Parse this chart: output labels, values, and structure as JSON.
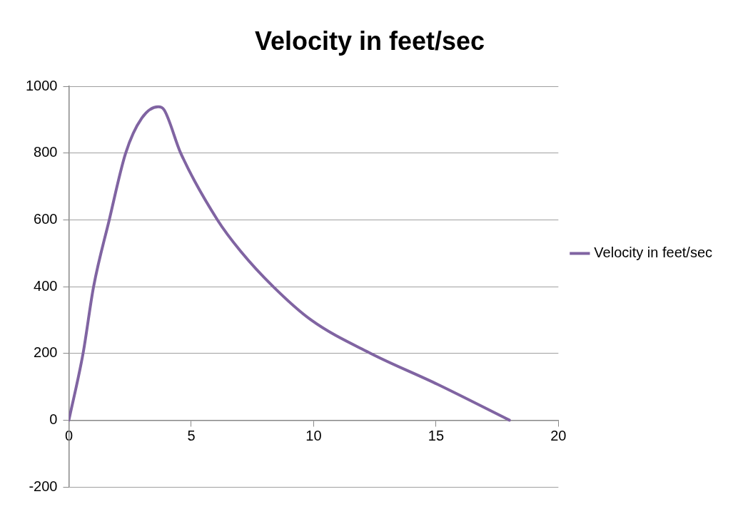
{
  "chart_data": {
    "type": "line",
    "title": "Velocity in feet/sec",
    "series": [
      {
        "name": "Velocity in feet/sec",
        "color": "#8064a2",
        "x": [
          0,
          0.58,
          1.01,
          1.65,
          2.32,
          2.98,
          3.65,
          3.89,
          4.57,
          6.07,
          7.02,
          8.35,
          9.9,
          12.33,
          15.07,
          18
        ],
        "values": [
          0,
          200,
          400,
          600,
          800,
          905,
          939,
          930,
          800,
          600,
          506,
          400,
          300,
          200,
          107,
          0
        ]
      }
    ],
    "xlim": [
      0,
      20
    ],
    "xticks": [
      0,
      5,
      10,
      15,
      20
    ],
    "ylim": [
      -200,
      1000
    ],
    "yticks": [
      -200,
      0,
      200,
      400,
      600,
      800,
      1000
    ],
    "grid": "y",
    "legend": "right",
    "marker": "none",
    "line_style": "solid"
  }
}
